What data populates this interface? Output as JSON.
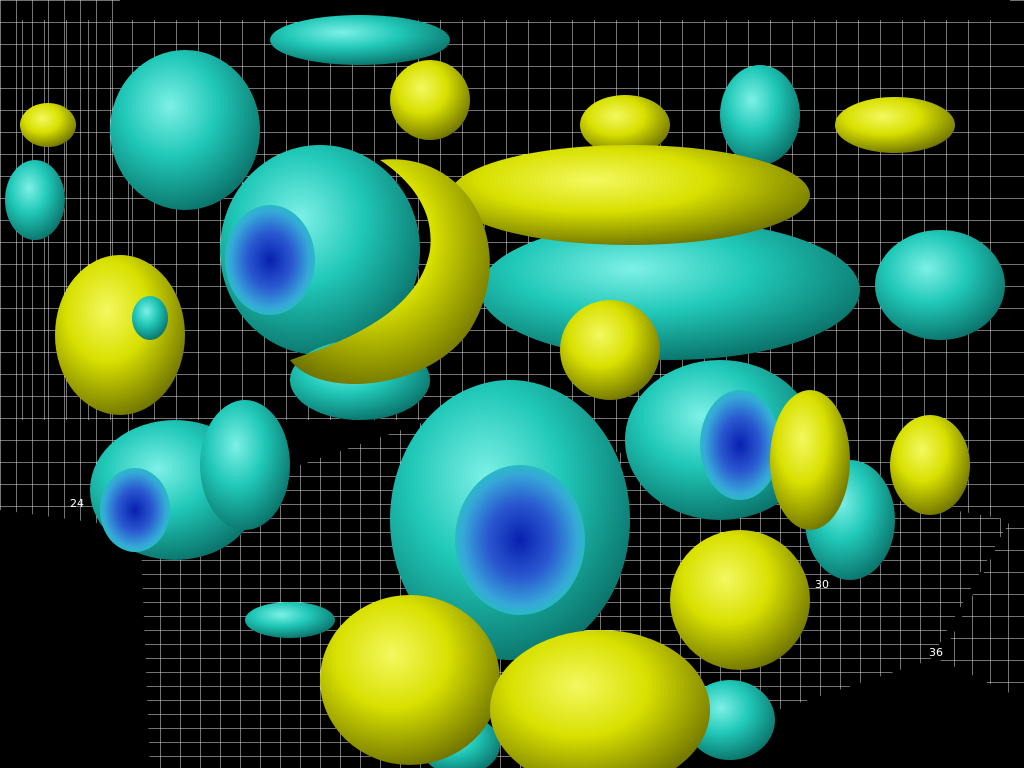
{
  "visualization": {
    "background_color": "#000000",
    "grid_color": "#ffffff",
    "isosurface_colors": {
      "positive": "#d8e000",
      "negative": "#20c8b8",
      "core": "#1838c0"
    },
    "axis_tick_labels": [
      "24",
      "30",
      "36"
    ]
  }
}
